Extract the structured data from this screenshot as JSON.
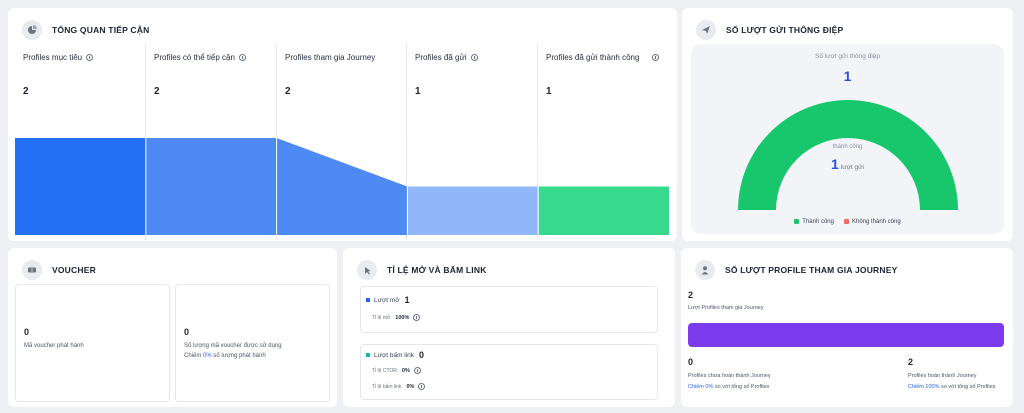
{
  "overview": {
    "title": "TỔNG QUAN TIẾP CẬN",
    "icon": "pie-chart-icon",
    "stages": [
      {
        "label": "Profiles mục tiêu",
        "value": 2,
        "color": "#2470f4"
      },
      {
        "label": "Profiles có thể tiếp cận",
        "value": 2,
        "color": "#4d8af4"
      },
      {
        "label": "Profiles tham gia Journey",
        "value": 2,
        "color": "#4d8af4"
      },
      {
        "label": "Profiles đã gửi",
        "value": 1,
        "color": "#92b6fb"
      },
      {
        "label": "Profiles đã gửi thành công",
        "value": 1,
        "color": "#37d98c"
      }
    ]
  },
  "messages": {
    "title": "SỐ LƯỢT GỬI THÔNG ĐIỆP",
    "icon": "send-icon",
    "top_label": "Số lượt gửi thông điệp",
    "top_value": "1",
    "mid_label": "thành công",
    "mid_value": "1",
    "mid_unit": "lượt gửi",
    "gauge": {
      "success": 1,
      "failure": 0,
      "success_color": "#18c76b",
      "failure_color": "#f26b5b"
    },
    "legend": [
      {
        "label": "Thành công",
        "color": "#18c76b"
      },
      {
        "label": "Không thành công",
        "color": "#f26b5b"
      }
    ]
  },
  "voucher": {
    "title": "VOUCHER",
    "icon": "ticket-icon",
    "issued_value": "0",
    "issued_label": "Mã voucher phát hành",
    "used_value": "0",
    "used_label": "Số lượng mã voucher được sử dụng",
    "used_sub_prefix": "Chiếm",
    "used_sub_pct": "0%",
    "used_sub_suffix": "số lượng phát hành"
  },
  "rates": {
    "title": "TỈ LỆ MỞ VÀ BẤM LINK",
    "icon": "cursor-click-icon",
    "opens_label": "Lượt mở",
    "opens_value": "1",
    "open_rate_label": "Tỉ lệ mở",
    "open_rate_value": "100%",
    "clicks_label": "Lượt bấm link",
    "clicks_value": "0",
    "ctor_label": "Tỉ lệ CTOR",
    "ctor_value": "0%",
    "click_rate_label": "Tỉ lệ bấm link",
    "click_rate_value": "0%",
    "opens_color": "#2563eb",
    "clicks_color": "#14b8a6"
  },
  "journey": {
    "title": "SỐ LƯỢT PROFILE THAM GIA JOURNEY",
    "icon": "user-icon",
    "total_value": "2",
    "total_label": "Lượt Profiles tham gia Journey",
    "incomplete_value": "0",
    "incomplete_label": "Profiles chưa hoàn thành Journey",
    "incomplete_pct_prefix": "Chiếm 0%",
    "incomplete_pct_suffix": "so với tổng số Profiles",
    "complete_value": "2",
    "complete_label": "Profiles hoàn thành Journey",
    "complete_pct_prefix": "Chiếm 100%",
    "complete_pct_suffix": "so với tổng số Profiles",
    "bar_color": "#7c3aed",
    "completion_fraction": 1.0
  }
}
